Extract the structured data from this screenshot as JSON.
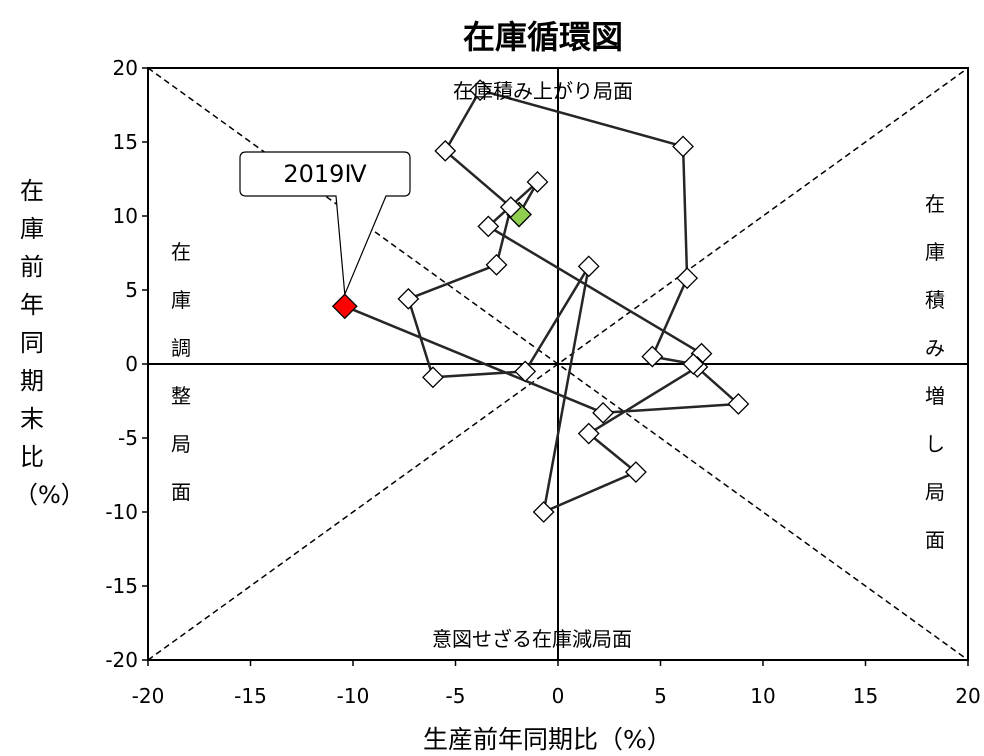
{
  "chart_data": {
    "type": "scatter",
    "title": "在庫循環図",
    "xlabel": "生産前年同期比（%）",
    "ylabel": "在庫前年同期末比（%）",
    "xlim": [
      -20,
      20
    ],
    "ylim": [
      -20,
      20
    ],
    "xticks": [
      "-20",
      "-15",
      "-10",
      "-5",
      "0",
      "5",
      "10",
      "15",
      "20"
    ],
    "yticks": [
      "20",
      "15",
      "10",
      "5",
      "0",
      "-5",
      "-10",
      "-15",
      "-20"
    ],
    "grid": false,
    "connected": true,
    "points": [
      {
        "x": -1.9,
        "y": 10.1
      },
      {
        "x": -1.0,
        "y": 12.3
      },
      {
        "x": -3.4,
        "y": 9.3
      },
      {
        "x": 7.0,
        "y": 0.7
      },
      {
        "x": 6.8,
        "y": -0.2
      },
      {
        "x": 1.5,
        "y": -4.7
      },
      {
        "x": 3.8,
        "y": -7.3
      },
      {
        "x": -0.7,
        "y": -10.0
      },
      {
        "x": 1.5,
        "y": 6.6
      },
      {
        "x": -1.6,
        "y": -0.5
      },
      {
        "x": -6.1,
        "y": -0.9
      },
      {
        "x": -7.3,
        "y": 4.4
      },
      {
        "x": -3.0,
        "y": 6.7
      },
      {
        "x": -2.3,
        "y": 10.6
      },
      {
        "x": -5.5,
        "y": 14.4
      },
      {
        "x": -3.8,
        "y": 18.5
      },
      {
        "x": 6.1,
        "y": 14.7
      },
      {
        "x": 6.3,
        "y": 5.8
      },
      {
        "x": 4.6,
        "y": 0.5
      },
      {
        "x": 6.6,
        "y": 0.0
      },
      {
        "x": 8.8,
        "y": -2.7
      },
      {
        "x": 2.2,
        "y": -3.3
      },
      {
        "x": -10.4,
        "y": 3.9
      }
    ],
    "highlight_start": {
      "x": -1.9,
      "y": 10.1,
      "color": "#8fce4f"
    },
    "highlight_end": {
      "x": -10.4,
      "y": 3.9,
      "color": "#ff0000",
      "label": "2019Ⅳ"
    },
    "annotations": {
      "top": "在庫積み上がり局面",
      "bottom": "意図せざる在庫減局面",
      "left": "在庫調整局面",
      "right": "在庫積み増し局面"
    }
  }
}
